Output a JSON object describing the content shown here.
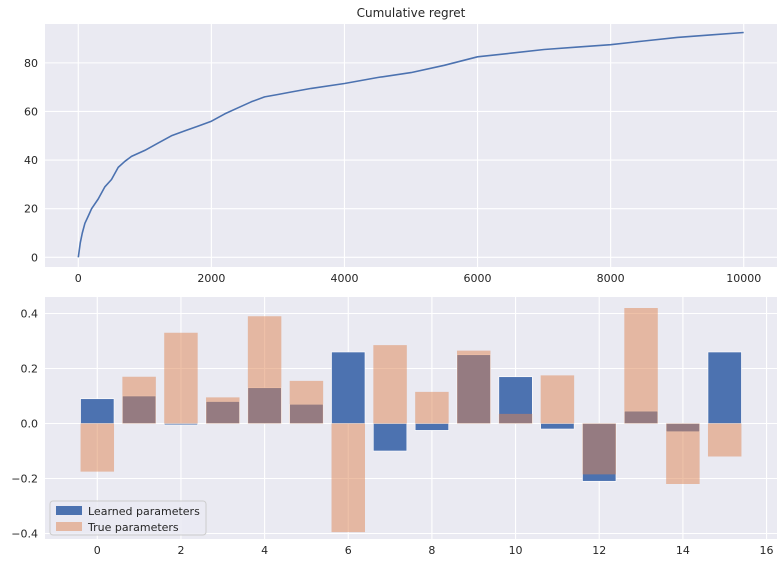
{
  "colors": {
    "background": "#eaeaf2",
    "grid": "#ffffff",
    "learned": "#4c72b0",
    "true": "#dd8452",
    "text": "#262626"
  },
  "chart_data": [
    {
      "type": "line",
      "title": "Cumulative regret",
      "xlabel": "",
      "ylabel": "",
      "xlim": [
        -500,
        10500
      ],
      "ylim": [
        -4,
        96
      ],
      "xticks": [
        0,
        2000,
        4000,
        6000,
        8000,
        10000
      ],
      "xtick_labels": [
        "0",
        "2000",
        "4000",
        "6000",
        "8000",
        "10000"
      ],
      "yticks": [
        0,
        20,
        40,
        60,
        80
      ],
      "ytick_labels": [
        "0",
        "20",
        "40",
        "60",
        "80"
      ],
      "grid": true,
      "series": [
        {
          "x": [
            0,
            30,
            60,
            100,
            150,
            200,
            300,
            400,
            500,
            600,
            700,
            800,
            1000,
            1200,
            1400,
            1600,
            1800,
            2000,
            2200,
            2400,
            2600,
            2800,
            3000,
            3200,
            3500,
            4000,
            4500,
            5000,
            5500,
            6000,
            6500,
            7000,
            7500,
            8000,
            8500,
            9000,
            9500,
            10000
          ],
          "y": [
            0,
            6,
            10,
            14,
            17,
            20,
            24,
            29,
            32,
            37,
            39.5,
            41.5,
            44,
            47,
            50,
            52,
            54,
            56,
            59,
            61.5,
            64,
            66,
            67,
            68,
            69.5,
            71.5,
            74,
            76,
            79,
            82.5,
            84,
            85.5,
            86.5,
            87.5,
            89,
            90.5,
            91.5,
            92.5
          ]
        }
      ]
    },
    {
      "type": "bar",
      "title": "",
      "xlabel": "",
      "ylabel": "",
      "xlim": [
        -1.25,
        16.25
      ],
      "ylim": [
        -0.42,
        0.46
      ],
      "xticks": [
        0,
        2,
        4,
        6,
        8,
        10,
        12,
        14,
        16
      ],
      "xtick_labels": [
        "0",
        "2",
        "4",
        "6",
        "8",
        "10",
        "12",
        "14",
        "16"
      ],
      "yticks": [
        -0.4,
        -0.2,
        0.0,
        0.2,
        0.4
      ],
      "ytick_labels": [
        "−0.4",
        "−0.2",
        "0.0",
        "0.2",
        "0.4"
      ],
      "grid": true,
      "legend_position": "lower-left",
      "categories": [
        0,
        1,
        2,
        3,
        4,
        5,
        6,
        7,
        8,
        9,
        10,
        11,
        12,
        13,
        14,
        15
      ],
      "series": [
        {
          "name": "Learned parameters",
          "values": [
            0.09,
            0.1,
            -0.005,
            0.08,
            0.13,
            0.07,
            0.26,
            -0.1,
            -0.025,
            0.25,
            0.17,
            -0.02,
            -0.21,
            0.045,
            -0.03,
            0.26
          ]
        },
        {
          "name": "True parameters",
          "values": [
            -0.175,
            0.17,
            0.33,
            0.095,
            0.39,
            0.155,
            -0.395,
            0.285,
            0.115,
            0.265,
            0.035,
            0.175,
            -0.185,
            0.42,
            -0.22,
            -0.12
          ]
        }
      ]
    }
  ]
}
